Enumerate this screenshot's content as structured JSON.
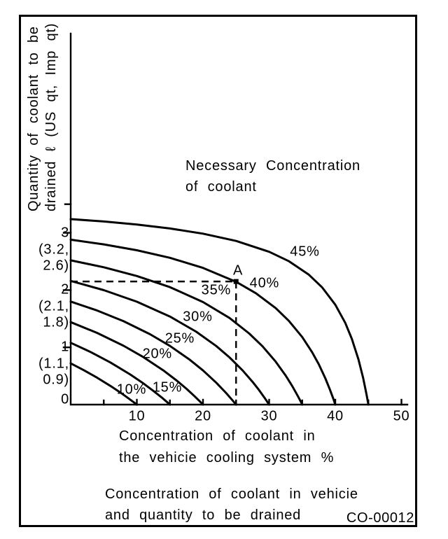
{
  "figure": {
    "code": "CO-00012",
    "caption_line1": "Concentration of coolant in vehicie",
    "caption_line2": "and quantity to be drained"
  },
  "colors": {
    "ink": "#000000",
    "background": "#ffffff"
  },
  "chart_data": {
    "type": "line",
    "title": "Necessary Concentration of coolant",
    "annotation_lines": [
      "Necessary Concentration",
      "of coolant"
    ],
    "xlabel_lines": [
      "Concentration of coolant in",
      "the vehicie cooling system %"
    ],
    "ylabel_lines": [
      "Quantity of coolant to be",
      "drained ℓ (US qt, Imp qt)"
    ],
    "xlim": [
      0,
      50
    ],
    "ylim": [
      0,
      3.6
    ],
    "grid": false,
    "x_ticks_major": [
      10,
      20,
      30,
      40,
      50
    ],
    "x_ticks_minor": [
      5,
      15,
      25,
      35,
      45
    ],
    "y_ticks": [
      {
        "value": 3,
        "label": "3",
        "sub": [
          "(3.2,",
          "2.6)"
        ]
      },
      {
        "value": 2,
        "label": "2",
        "sub": [
          "(2.1,",
          "1.8)"
        ]
      },
      {
        "value": 1,
        "label": "1",
        "sub": [
          "(1.1,",
          "0.9)"
        ]
      },
      {
        "value": 0,
        "label": "0",
        "sub": []
      }
    ],
    "y_minor_tick": 3.5,
    "series": [
      {
        "label": "10%",
        "label_pos": [
          9.2,
          0.26
        ],
        "points": [
          [
            0,
            0.72
          ],
          [
            2,
            0.6
          ],
          [
            4,
            0.469
          ],
          [
            6,
            0.327
          ],
          [
            7.5,
            0.212
          ],
          [
            8.7,
            0.113
          ],
          [
            9.5,
            0.044
          ],
          [
            10,
            0
          ]
        ]
      },
      {
        "label": "15%",
        "label_pos": [
          14.6,
          0.29
        ],
        "points": [
          [
            0,
            1.08
          ],
          [
            3,
            0.919
          ],
          [
            6,
            0.736
          ],
          [
            9,
            0.526
          ],
          [
            11,
            0.369
          ],
          [
            12.5,
            0.239
          ],
          [
            13.7,
            0.129
          ],
          [
            14.5,
            0.051
          ],
          [
            15,
            0
          ]
        ]
      },
      {
        "label": "20%",
        "label_pos": [
          13.1,
          0.88
        ],
        "points": [
          [
            0,
            1.44
          ],
          [
            4,
            1.252
          ],
          [
            8,
            1.027
          ],
          [
            11,
            0.829
          ],
          [
            14,
            0.598
          ],
          [
            16,
            0.422
          ],
          [
            17.5,
            0.276
          ],
          [
            18.7,
            0.149
          ],
          [
            19.5,
            0.059
          ],
          [
            20,
            0
          ]
        ]
      },
      {
        "label": "25%",
        "label_pos": [
          16.5,
          1.15
        ],
        "points": [
          [
            0,
            1.8
          ],
          [
            4,
            1.643
          ],
          [
            8,
            1.456
          ],
          [
            12,
            1.229
          ],
          [
            15,
            1.025
          ],
          [
            18,
            0.784
          ],
          [
            20,
            0.597
          ],
          [
            22,
            0.383
          ],
          [
            23.5,
            0.202
          ],
          [
            24.5,
            0.07
          ],
          [
            25,
            0
          ]
        ]
      },
      {
        "label": "30%",
        "label_pos": [
          19.2,
          1.53
        ],
        "points": [
          [
            0,
            2.16
          ],
          [
            5,
            1.999
          ],
          [
            10,
            1.797
          ],
          [
            15,
            1.538
          ],
          [
            19,
            1.272
          ],
          [
            22,
            1.023
          ],
          [
            24,
            0.825
          ],
          [
            26,
            0.595
          ],
          [
            27.5,
            0.396
          ],
          [
            28.5,
            0.249
          ],
          [
            29.3,
            0.12
          ],
          [
            30,
            0
          ]
        ]
      },
      {
        "label": "35%",
        "label_pos": [
          22.0,
          1.99
        ],
        "points": [
          [
            0,
            2.52
          ],
          [
            5,
            2.399
          ],
          [
            10,
            2.246
          ],
          [
            15,
            2.051
          ],
          [
            20,
            1.791
          ],
          [
            24,
            1.513
          ],
          [
            27,
            1.241
          ],
          [
            29,
            1.018
          ],
          [
            31,
            0.749
          ],
          [
            32.5,
            0.507
          ],
          [
            33.5,
            0.322
          ],
          [
            34.3,
            0.158
          ],
          [
            34.8,
            0.047
          ],
          [
            35,
            0
          ]
        ]
      },
      {
        "label": "40%",
        "label_pos": [
          29.3,
          2.12
        ],
        "points": [
          [
            0,
            2.88
          ],
          [
            5,
            2.798
          ],
          [
            10,
            2.695
          ],
          [
            15,
            2.563
          ],
          [
            20,
            2.388
          ],
          [
            25,
            2.144
          ],
          [
            28,
            1.945
          ],
          [
            31,
            1.684
          ],
          [
            33,
            1.46
          ],
          [
            35,
            1.178
          ],
          [
            36.5,
            0.914
          ],
          [
            37.5,
            0.704
          ],
          [
            38.5,
            0.458
          ],
          [
            39.2,
            0.259
          ],
          [
            39.7,
            0.102
          ],
          [
            40,
            0
          ]
        ]
      },
      {
        "label": "45%",
        "label_pos": [
          35.4,
          2.67
        ],
        "points": [
          [
            0,
            3.24
          ],
          [
            5,
            3.198
          ],
          [
            10,
            3.145
          ],
          [
            15,
            3.076
          ],
          [
            20,
            2.985
          ],
          [
            25,
            2.858
          ],
          [
            30,
            2.669
          ],
          [
            33,
            2.504
          ],
          [
            36,
            2.269
          ],
          [
            38,
            2.049
          ],
          [
            40,
            1.745
          ],
          [
            41.5,
            1.428
          ],
          [
            42.5,
            1.149
          ],
          [
            43.5,
            0.789
          ],
          [
            44.2,
            0.469
          ],
          [
            44.7,
            0.191
          ],
          [
            45,
            0
          ]
        ]
      }
    ],
    "point_A": {
      "label": "A",
      "x": 25,
      "y": 2.15,
      "label_pos": [
        25.3,
        2.34
      ]
    }
  }
}
